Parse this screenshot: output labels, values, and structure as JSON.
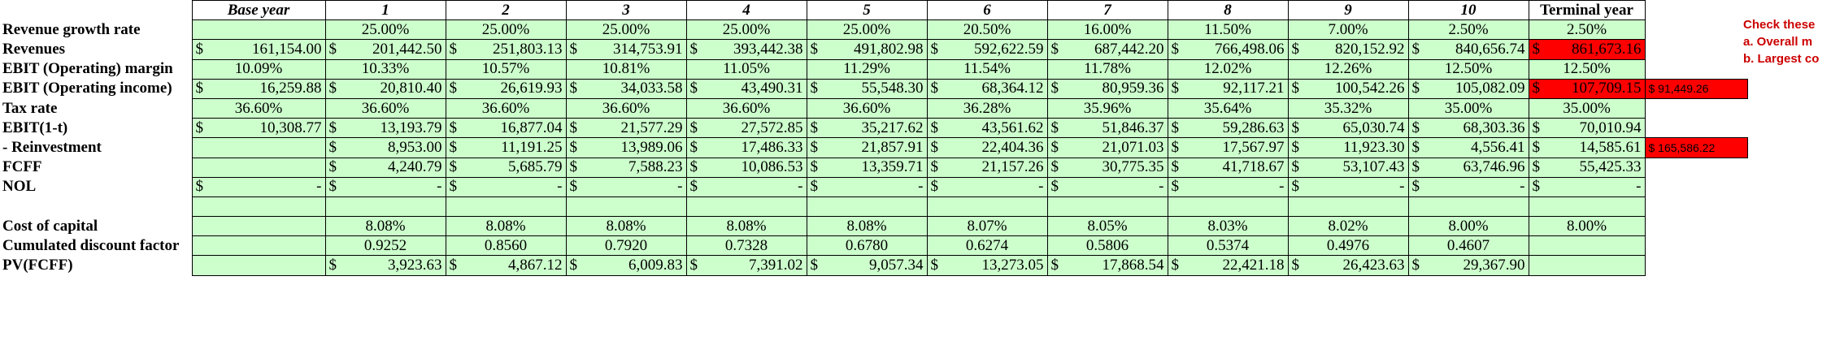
{
  "headers": [
    "",
    "Base year",
    "1",
    "2",
    "3",
    "4",
    "5",
    "6",
    "7",
    "8",
    "9",
    "10",
    "Terminal year"
  ],
  "rows": [
    {
      "label": "Revenue growth rate",
      "type": "pct",
      "cells": [
        "",
        "25.00%",
        "25.00%",
        "25.00%",
        "25.00%",
        "25.00%",
        "20.50%",
        "16.00%",
        "11.50%",
        "7.00%",
        "2.50%",
        "2.50%"
      ],
      "extra": ""
    },
    {
      "label": "Revenues",
      "type": "cur",
      "cells": [
        "161,154.00",
        "201,442.50",
        "251,803.13",
        "314,753.91",
        "393,442.38",
        "491,802.98",
        "592,622.59",
        "687,442.20",
        "766,498.06",
        "820,152.92",
        "840,656.74",
        "861,673.16"
      ],
      "extra": ""
    },
    {
      "label": "EBIT (Operating) margin",
      "type": "pct",
      "cells": [
        "10.09%",
        "10.33%",
        "10.57%",
        "10.81%",
        "11.05%",
        "11.29%",
        "11.54%",
        "11.78%",
        "12.02%",
        "12.26%",
        "12.50%",
        "12.50%"
      ],
      "extra": ""
    },
    {
      "label": "EBIT (Operating income)",
      "type": "cur",
      "cells": [
        "16,259.88",
        "20,810.40",
        "26,619.93",
        "34,033.58",
        "43,490.31",
        "55,548.30",
        "68,364.12",
        "80,959.36",
        "92,117.21",
        "100,542.26",
        "105,082.09",
        "107,709.15"
      ],
      "extra": "$ 91,449.26"
    },
    {
      "label": "Tax rate",
      "type": "pct",
      "cells": [
        "36.60%",
        "36.60%",
        "36.60%",
        "36.60%",
        "36.60%",
        "36.60%",
        "36.28%",
        "35.96%",
        "35.64%",
        "35.32%",
        "35.00%",
        "35.00%"
      ],
      "extra": ""
    },
    {
      "label": "EBIT(1-t)",
      "type": "cur",
      "cells": [
        "10,308.77",
        "13,193.79",
        "16,877.04",
        "21,577.29",
        "27,572.85",
        "35,217.62",
        "43,561.62",
        "51,846.37",
        "59,286.63",
        "65,030.74",
        "68,303.36",
        "70,010.94"
      ],
      "extra": ""
    },
    {
      "label": " - Reinvestment",
      "type": "cur",
      "cells": [
        "",
        "8,953.00",
        "11,191.25",
        "13,989.06",
        "17,486.33",
        "21,857.91",
        "22,404.36",
        "21,071.03",
        "17,567.97",
        "11,923.30",
        "4,556.41",
        "14,585.61"
      ],
      "extra": "$ 165,586.22"
    },
    {
      "label": "FCFF",
      "type": "cur",
      "cells": [
        "",
        "4,240.79",
        "5,685.79",
        "7,588.23",
        "10,086.53",
        "13,359.71",
        "21,157.26",
        "30,775.35",
        "41,718.67",
        "53,107.43",
        "63,746.96",
        "55,425.33"
      ],
      "extra": ""
    },
    {
      "label": "NOL",
      "type": "cur",
      "cells": [
        "-",
        "-",
        "-",
        "-",
        "-",
        "-",
        "-",
        "-",
        "-",
        "-",
        "-",
        "-"
      ],
      "extra": ""
    },
    {
      "label": "",
      "type": "blank",
      "cells": [
        "",
        "",
        "",
        "",
        "",
        "",
        "",
        "",
        "",
        "",
        "",
        ""
      ],
      "extra": ""
    },
    {
      "label": "Cost of capital",
      "type": "pct",
      "cells": [
        "",
        "8.08%",
        "8.08%",
        "8.08%",
        "8.08%",
        "8.08%",
        "8.07%",
        "8.05%",
        "8.03%",
        "8.02%",
        "8.00%",
        "8.00%"
      ],
      "extra": ""
    },
    {
      "label": "Cumulated discount factor",
      "type": "num",
      "cells": [
        "",
        "0.9252",
        "0.8560",
        "0.7920",
        "0.7328",
        "0.6780",
        "0.6274",
        "0.5806",
        "0.5374",
        "0.4976",
        "0.4607",
        ""
      ],
      "extra": ""
    },
    {
      "label": "PV(FCFF)",
      "type": "cur",
      "cells": [
        "",
        "3,923.63",
        "4,867.12",
        "6,009.83",
        "7,391.02",
        "9,057.34",
        "13,273.05",
        "17,868.54",
        "22,421.18",
        "26,423.63",
        "29,367.90",
        ""
      ],
      "extra": ""
    }
  ],
  "note": {
    "title": "Check these",
    "line1": "a. Overall m",
    "line2": "b. Largest co"
  },
  "currency_symbol": "$",
  "colors": {
    "input_fill": "#ccffcc",
    "highlight_fill": "#ff0000",
    "note_text": "#cc0000"
  }
}
